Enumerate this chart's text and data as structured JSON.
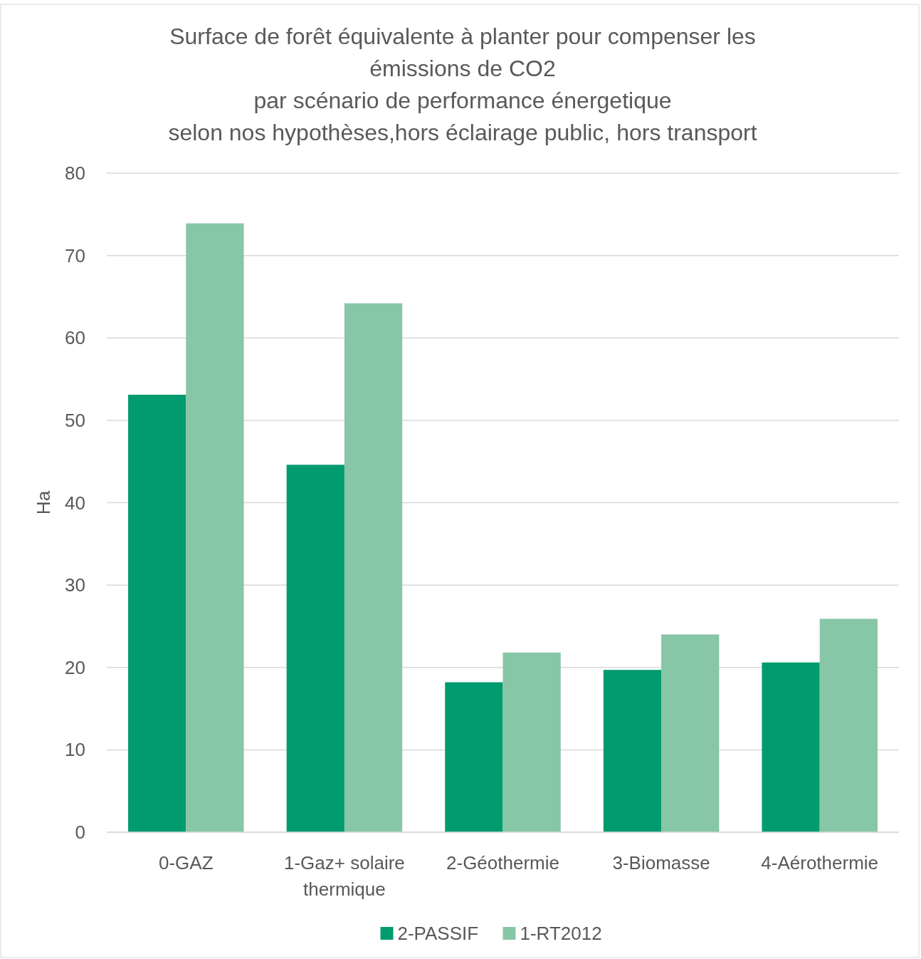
{
  "chart_data": {
    "type": "bar",
    "title": "Surface de forêt équivalente à planter pour compenser les\némissions de CO2\npar scénario de performance énergetique\nselon nos hypothèses,hors éclairage public, hors transport",
    "ylabel": "Ha",
    "categories": [
      "0-GAZ",
      "1-Gaz+ solaire thermique",
      "2-Géothermie",
      "3-Biomasse",
      "4-Aérothermie"
    ],
    "series": [
      {
        "name": "2-PASSIF",
        "color": "#009b6e",
        "values": [
          53.1,
          44.6,
          18.2,
          19.7,
          20.6
        ]
      },
      {
        "name": "1-RT2012",
        "color": "#87c6a6",
        "values": [
          73.9,
          64.2,
          21.8,
          24.0,
          25.9
        ]
      }
    ],
    "ylim": [
      0,
      80
    ],
    "yticks": [
      0,
      10,
      20,
      30,
      40,
      50,
      60,
      70,
      80
    ],
    "grid": "y",
    "legend": "bottom"
  }
}
